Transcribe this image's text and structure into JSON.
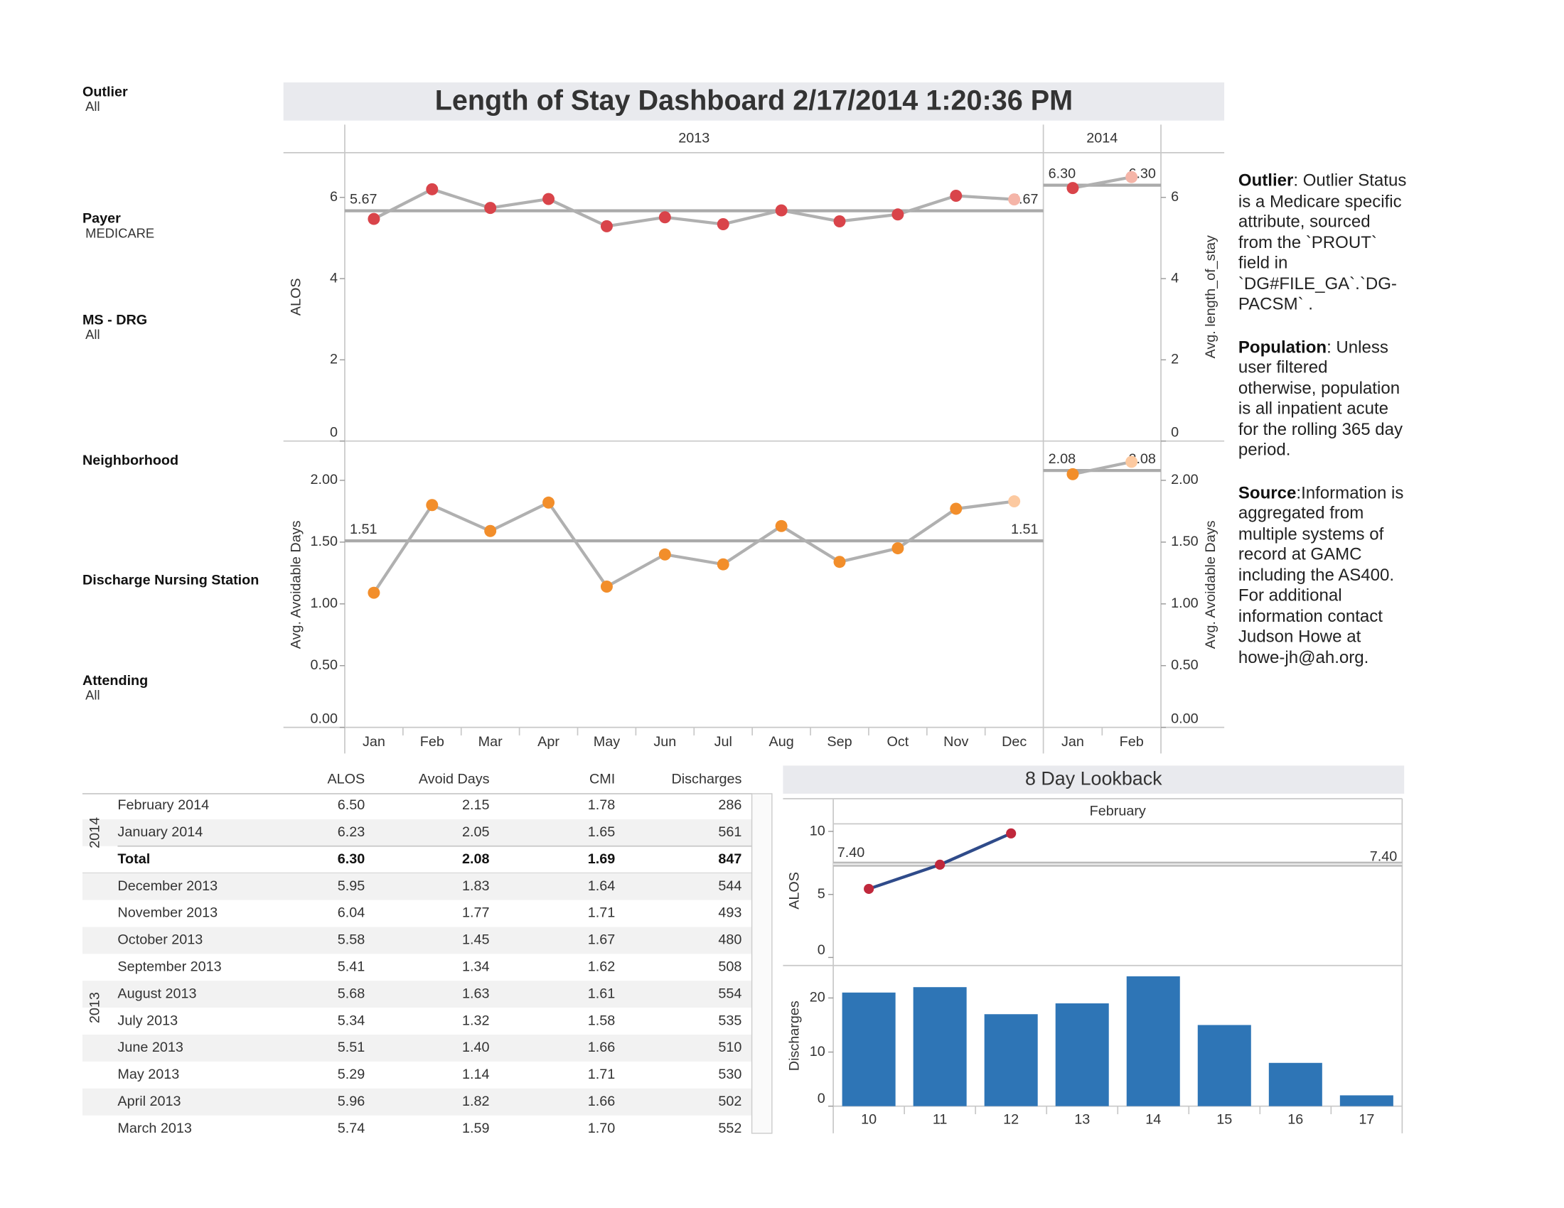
{
  "title": "Length of Stay Dashboard 2/17/2014 1:20:36 PM",
  "filters": [
    {
      "label": "Outlier",
      "value": "All"
    },
    {
      "label": "Payer",
      "value": "MEDICARE"
    },
    {
      "label": "MS - DRG",
      "value": "All"
    },
    {
      "label": "Neighborhood"
    },
    {
      "label": "Discharge Nursing Station"
    },
    {
      "label": "Attending",
      "value": "All"
    }
  ],
  "chart_data": [
    {
      "type": "line",
      "columns": [
        {
          "header": "2013",
          "categories": [
            "Jan",
            "Feb",
            "Mar",
            "Apr",
            "May",
            "Jun",
            "Jul",
            "Aug",
            "Sep",
            "Oct",
            "Nov",
            "Dec"
          ]
        },
        {
          "header": "2014",
          "categories": [
            "Jan",
            "Feb"
          ]
        }
      ],
      "rows": [
        {
          "ylabel": "ALOS",
          "y2label": "Avg. length_of_stay",
          "color": "#d9444a",
          "highlight_color": "#f5b5a8",
          "line_color": "#b0b0b0",
          "ylim": [
            0,
            7.1
          ],
          "yticks": [
            0,
            2,
            4,
            6
          ],
          "values": [
            [
              5.47,
              6.2,
              5.74,
              5.96,
              5.29,
              5.51,
              5.34,
              5.68,
              5.41,
              5.58,
              6.04,
              5.95
            ],
            [
              6.23,
              6.5
            ]
          ],
          "reference": [
            5.67,
            {
              "value": 6.3,
              "label": "6.30"
            }
          ]
        },
        {
          "ylabel": "Avg. Avoidable Days",
          "y2label": "Avg. Avoidable Days",
          "color": "#f28e2b",
          "highlight_color": "#fcc9a0",
          "line_color": "#b0b0b0",
          "ylim": [
            0,
            2.31
          ],
          "yticks": [
            {
              "value": 0,
              "label": "0.00"
            },
            {
              "value": 0.5,
              "label": "0.50"
            },
            {
              "value": 1,
              "label": "1.00"
            },
            {
              "value": 1.5,
              "label": "1.50"
            },
            {
              "value": 2,
              "label": "2.00"
            }
          ],
          "values": [
            [
              1.09,
              1.8,
              1.59,
              1.82,
              1.14,
              1.4,
              1.32,
              1.63,
              1.34,
              1.45,
              1.77,
              1.83
            ],
            [
              2.05,
              2.15
            ]
          ],
          "reference": [
            1.51,
            2.08
          ]
        }
      ]
    },
    {
      "type": "combo",
      "title": "8 Day Lookback",
      "header": "February",
      "categories": [
        "10",
        "11",
        "12",
        "13",
        "14",
        "15",
        "16",
        "17"
      ],
      "panels": [
        {
          "type": "line",
          "ylabel": "ALOS",
          "ylim": [
            0,
            10.6
          ],
          "yticks": [
            0,
            5,
            10
          ],
          "values": [
            5.44,
            7.36,
            9.84,
            null,
            null,
            null,
            null,
            null
          ],
          "color": "#2f4b8a",
          "point_color": "#c0283c",
          "reference": {
            "value": 7.4,
            "label": "7.40"
          }
        },
        {
          "type": "bar",
          "ylabel": "Discharges",
          "ylim": [
            0,
            26
          ],
          "yticks": [
            0,
            10,
            20
          ],
          "values": [
            21,
            22,
            17,
            19,
            24,
            15,
            8,
            2
          ],
          "color": "#2e75b6"
        }
      ]
    }
  ],
  "table": {
    "columns": [
      "ALOS",
      "Avoid Days",
      "CMI",
      "Discharges"
    ],
    "groups": [
      {
        "label": "2014",
        "rows": [
          [
            "February 2014",
            "6.50",
            "2.15",
            "1.78",
            "286"
          ],
          [
            "January 2014",
            "6.23",
            "2.05",
            "1.65",
            "561"
          ]
        ],
        "total": [
          "Total",
          "6.30",
          "2.08",
          "1.69",
          "847"
        ]
      },
      {
        "label": "2013",
        "rows": [
          [
            "December 2013",
            "5.95",
            "1.83",
            "1.64",
            "544"
          ],
          [
            "November 2013",
            "6.04",
            "1.77",
            "1.71",
            "493"
          ],
          [
            "October 2013",
            "5.58",
            "1.45",
            "1.67",
            "480"
          ],
          [
            "September 2013",
            "5.41",
            "1.34",
            "1.62",
            "508"
          ],
          [
            "August 2013",
            "5.68",
            "1.63",
            "1.61",
            "554"
          ],
          [
            "July 2013",
            "5.34",
            "1.32",
            "1.58",
            "535"
          ],
          [
            "June 2013",
            "5.51",
            "1.40",
            "1.66",
            "510"
          ],
          [
            "May 2013",
            "5.29",
            "1.14",
            "1.71",
            "530"
          ],
          [
            "April 2013",
            "5.96",
            "1.82",
            "1.66",
            "502"
          ],
          [
            "March 2013",
            "5.74",
            "1.59",
            "1.70",
            "552"
          ]
        ]
      }
    ]
  },
  "notes": [
    {
      "term": "Outlier",
      "text": ": Outlier Status is a Medicare specific attribute, sourced from the `PROUT` field in `DG#FILE_GA`.`DG-PACSM` ."
    },
    {
      "term": "Population",
      "text": ": Unless user filtered otherwise, population is all inpatient acute for the rolling 365 day period."
    },
    {
      "term": "Source",
      "text": ":Information is aggregated from multiple systems of record at GAMC including the AS400. For additional information contact Judson Howe at howe-jh@ah.org."
    }
  ]
}
